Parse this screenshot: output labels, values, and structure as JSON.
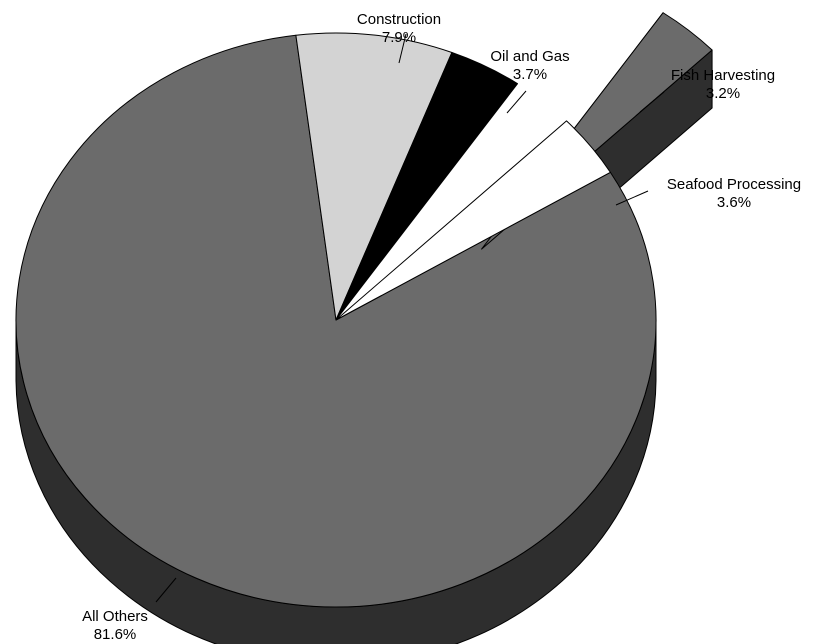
{
  "chart_data": {
    "type": "pie",
    "style": "3d-exploded",
    "title": "",
    "slices": [
      {
        "label": "All Others",
        "value_text": "81.6%",
        "value": 81.6,
        "color": "#6b6b6b",
        "side_color": "#2e2e2e",
        "exploded": false
      },
      {
        "label": "Construction",
        "value_text": "7.9%",
        "value": 7.9,
        "color": "#d3d3d3",
        "side_color": "#8e8e8e",
        "exploded": false
      },
      {
        "label": "Oil and Gas",
        "value_text": "3.7%",
        "value": 3.7,
        "color": "#000000",
        "side_color": "#000000",
        "exploded": false
      },
      {
        "label": "Fish Harvesting",
        "value_text": "3.2%",
        "value": 3.2,
        "color": "#6b6b6b",
        "side_color": "#2e2e2e",
        "exploded": true
      },
      {
        "label": "Seafood Processing",
        "value_text": "3.6%",
        "value": 3.6,
        "color": "#ffffff",
        "side_color": "#bdbdbd",
        "exploded": false
      }
    ]
  }
}
